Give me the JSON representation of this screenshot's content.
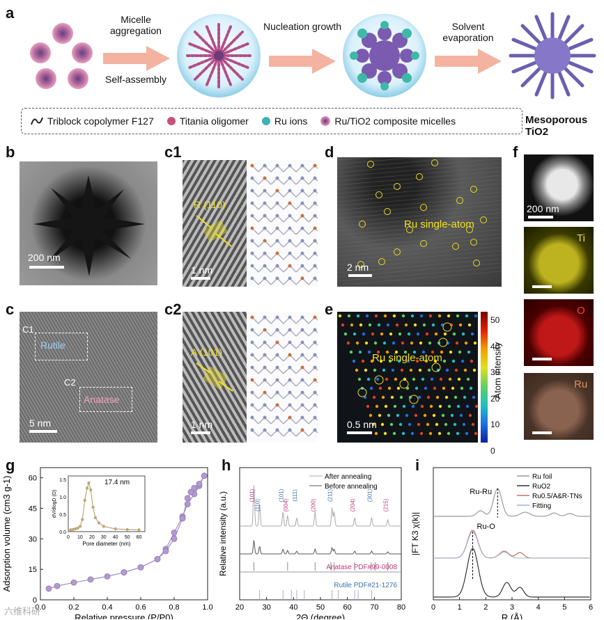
{
  "panel_a": {
    "label": "a",
    "steps": [
      {
        "top": "Micelle aggregation",
        "bottom": "Self-assembly"
      },
      {
        "top": "Nucleation growth",
        "bottom": ""
      },
      {
        "top": "Solvent evaporation",
        "bottom": ""
      }
    ],
    "legend": [
      {
        "icon": "copolymer-icon",
        "text": "Triblock copolymer F127"
      },
      {
        "icon": "titania-oligomer-icon",
        "text": "Titania oligomer"
      },
      {
        "icon": "ru-ion-icon",
        "text": "Ru ions"
      },
      {
        "icon": "micelle-icon",
        "text": "Ru/TiO2 composite micelles"
      }
    ],
    "final_label": "Mesoporous TiO2"
  },
  "panel_b": {
    "label": "b",
    "scale": "200 nm"
  },
  "panel_c": {
    "label": "c",
    "scale": "5 nm",
    "region1": "C1",
    "region2": "C2",
    "rutile": "Rutile",
    "anatase": "Anatase"
  },
  "panel_c1": {
    "label": "c1",
    "plane": "R (110)",
    "scale": "1 nm"
  },
  "panel_c2": {
    "label": "c2",
    "plane": "A (101)",
    "scale": "1 nm"
  },
  "panel_d": {
    "label": "d",
    "annotation": "Ru single-atom",
    "scale": "2 nm"
  },
  "panel_e": {
    "label": "e",
    "annotation": "Ru single-atom",
    "scale": "0.5 nm",
    "colorbar_label": "Atom intensity",
    "colorbar_ticks": [
      "50",
      "40",
      "30",
      "20",
      "10",
      "0"
    ]
  },
  "panel_f": {
    "label": "f",
    "scale": "200 nm",
    "elements": [
      "Ti",
      "O",
      "Ru"
    ],
    "colors": {
      "Ti": "#d4cc2a",
      "O": "#d42020",
      "Ru": "#a9765a"
    }
  },
  "chart_data": [
    {
      "panel": "g",
      "type": "scatter",
      "xlabel": "Relative pressure (P/P0)",
      "ylabel": "Adsorption volume (cm3 g-1)",
      "xlim": [
        0,
        1.0
      ],
      "ylim": [
        0,
        65
      ],
      "xticks": [
        "0.0",
        "0.2",
        "0.4",
        "0.6",
        "0.8",
        "1.0"
      ],
      "yticks": [
        "0",
        "15",
        "30",
        "45",
        "60"
      ],
      "series": [
        {
          "values": [
            [
              0.05,
              5.5
            ],
            [
              0.1,
              6.8
            ],
            [
              0.2,
              8.5
            ],
            [
              0.3,
              10
            ],
            [
              0.4,
              11.5
            ],
            [
              0.5,
              13.5
            ],
            [
              0.6,
              16
            ],
            [
              0.7,
              20
            ],
            [
              0.75,
              25
            ],
            [
              0.8,
              33
            ],
            [
              0.85,
              41
            ],
            [
              0.88,
              47
            ],
            [
              0.92,
              52
            ],
            [
              0.95,
              56
            ],
            [
              0.98,
              61
            ]
          ]
        },
        {
          "values": [
            [
              0.98,
              61
            ],
            [
              0.95,
              57
            ],
            [
              0.92,
              55
            ],
            [
              0.9,
              53
            ],
            [
              0.88,
              50
            ],
            [
              0.85,
              40
            ],
            [
              0.8,
              30
            ],
            [
              0.75,
              24
            ],
            [
              0.7,
              20
            ],
            [
              0.6,
              16
            ],
            [
              0.5,
              13.5
            ]
          ]
        }
      ],
      "inset": {
        "annotation": "17.4 nm",
        "xlabel": "Pore diameter (nm)",
        "ylabel": "dV/dlogD (D)",
        "xticks": [
          "0",
          "10",
          "20",
          "30",
          "40",
          "50",
          "60"
        ],
        "yticks": [
          "0.0",
          "0.5",
          "1.0",
          "1.5"
        ],
        "values": [
          [
            2,
            0.05
          ],
          [
            4,
            0.06
          ],
          [
            6,
            0.08
          ],
          [
            8,
            0.1
          ],
          [
            10,
            0.15
          ],
          [
            12,
            0.35
          ],
          [
            14,
            0.9
          ],
          [
            16,
            1.25
          ],
          [
            17.4,
            1.4
          ],
          [
            19,
            1.2
          ],
          [
            21,
            0.7
          ],
          [
            23,
            0.4
          ],
          [
            26,
            0.25
          ],
          [
            30,
            0.15
          ],
          [
            40,
            0.08
          ],
          [
            50,
            0.06
          ],
          [
            60,
            0.05
          ]
        ]
      }
    },
    {
      "panel": "h",
      "type": "line",
      "xlabel": "2Θ (degree)",
      "ylabel": "Relative intensity (a.u.)",
      "xlim": [
        20,
        80
      ],
      "xticks": [
        "20",
        "30",
        "40",
        "50",
        "60",
        "70",
        "80"
      ],
      "legend": [
        "After annealing",
        "Before annealing"
      ],
      "peak_labels": [
        {
          "x": 25.3,
          "text": "(101)",
          "color": "#c03a7a"
        },
        {
          "x": 27.4,
          "text": "(110)",
          "color": "#3a6fb0"
        },
        {
          "x": 36.1,
          "text": "(101)",
          "color": "#3a6fb0"
        },
        {
          "x": 37.8,
          "text": "(004)",
          "color": "#c03a7a"
        },
        {
          "x": 41.2,
          "text": "(111)",
          "color": "#3a6fb0"
        },
        {
          "x": 48.0,
          "text": "(200)",
          "color": "#c03a7a"
        },
        {
          "x": 54.3,
          "text": "(211)",
          "color": "#3a6fb0"
        },
        {
          "x": 62.7,
          "text": "(204)",
          "color": "#c03a7a"
        },
        {
          "x": 69.0,
          "text": "(301)",
          "color": "#3a6fb0"
        },
        {
          "x": 75.0,
          "text": "(215)",
          "color": "#c03a7a"
        }
      ],
      "references": [
        {
          "text": "Anatase PDF#99-0008",
          "color": "#c03a7a",
          "peaks": [
            25.3,
            37.8,
            48.0,
            53.9,
            55.1,
            62.7,
            68.8,
            70.3,
            75.0
          ]
        },
        {
          "text": "Rutile PDF#21-1276",
          "color": "#3a6fb0",
          "peaks": [
            27.4,
            36.1,
            39.2,
            41.2,
            44.0,
            54.3,
            56.6,
            62.7,
            64.0,
            69.0
          ]
        }
      ]
    },
    {
      "panel": "i",
      "type": "line",
      "xlabel": "R (Å)",
      "ylabel": "|FT K3 χ(k)|",
      "xlim": [
        0,
        6
      ],
      "xticks": [
        "0",
        "1",
        "2",
        "3",
        "4",
        "5",
        "6"
      ],
      "legend": [
        "Ru foil",
        "RuO2",
        "Ru0.5/A&R-TNs",
        "Fitting"
      ],
      "legend_colors": [
        "#999999",
        "#333333",
        "#c97060",
        "#9fb0d8"
      ],
      "annotations": [
        {
          "x": 2.45,
          "text": "Ru-Ru"
        },
        {
          "x": 1.5,
          "text": "Ru-O"
        }
      ]
    }
  ],
  "watermark": "六维科研"
}
